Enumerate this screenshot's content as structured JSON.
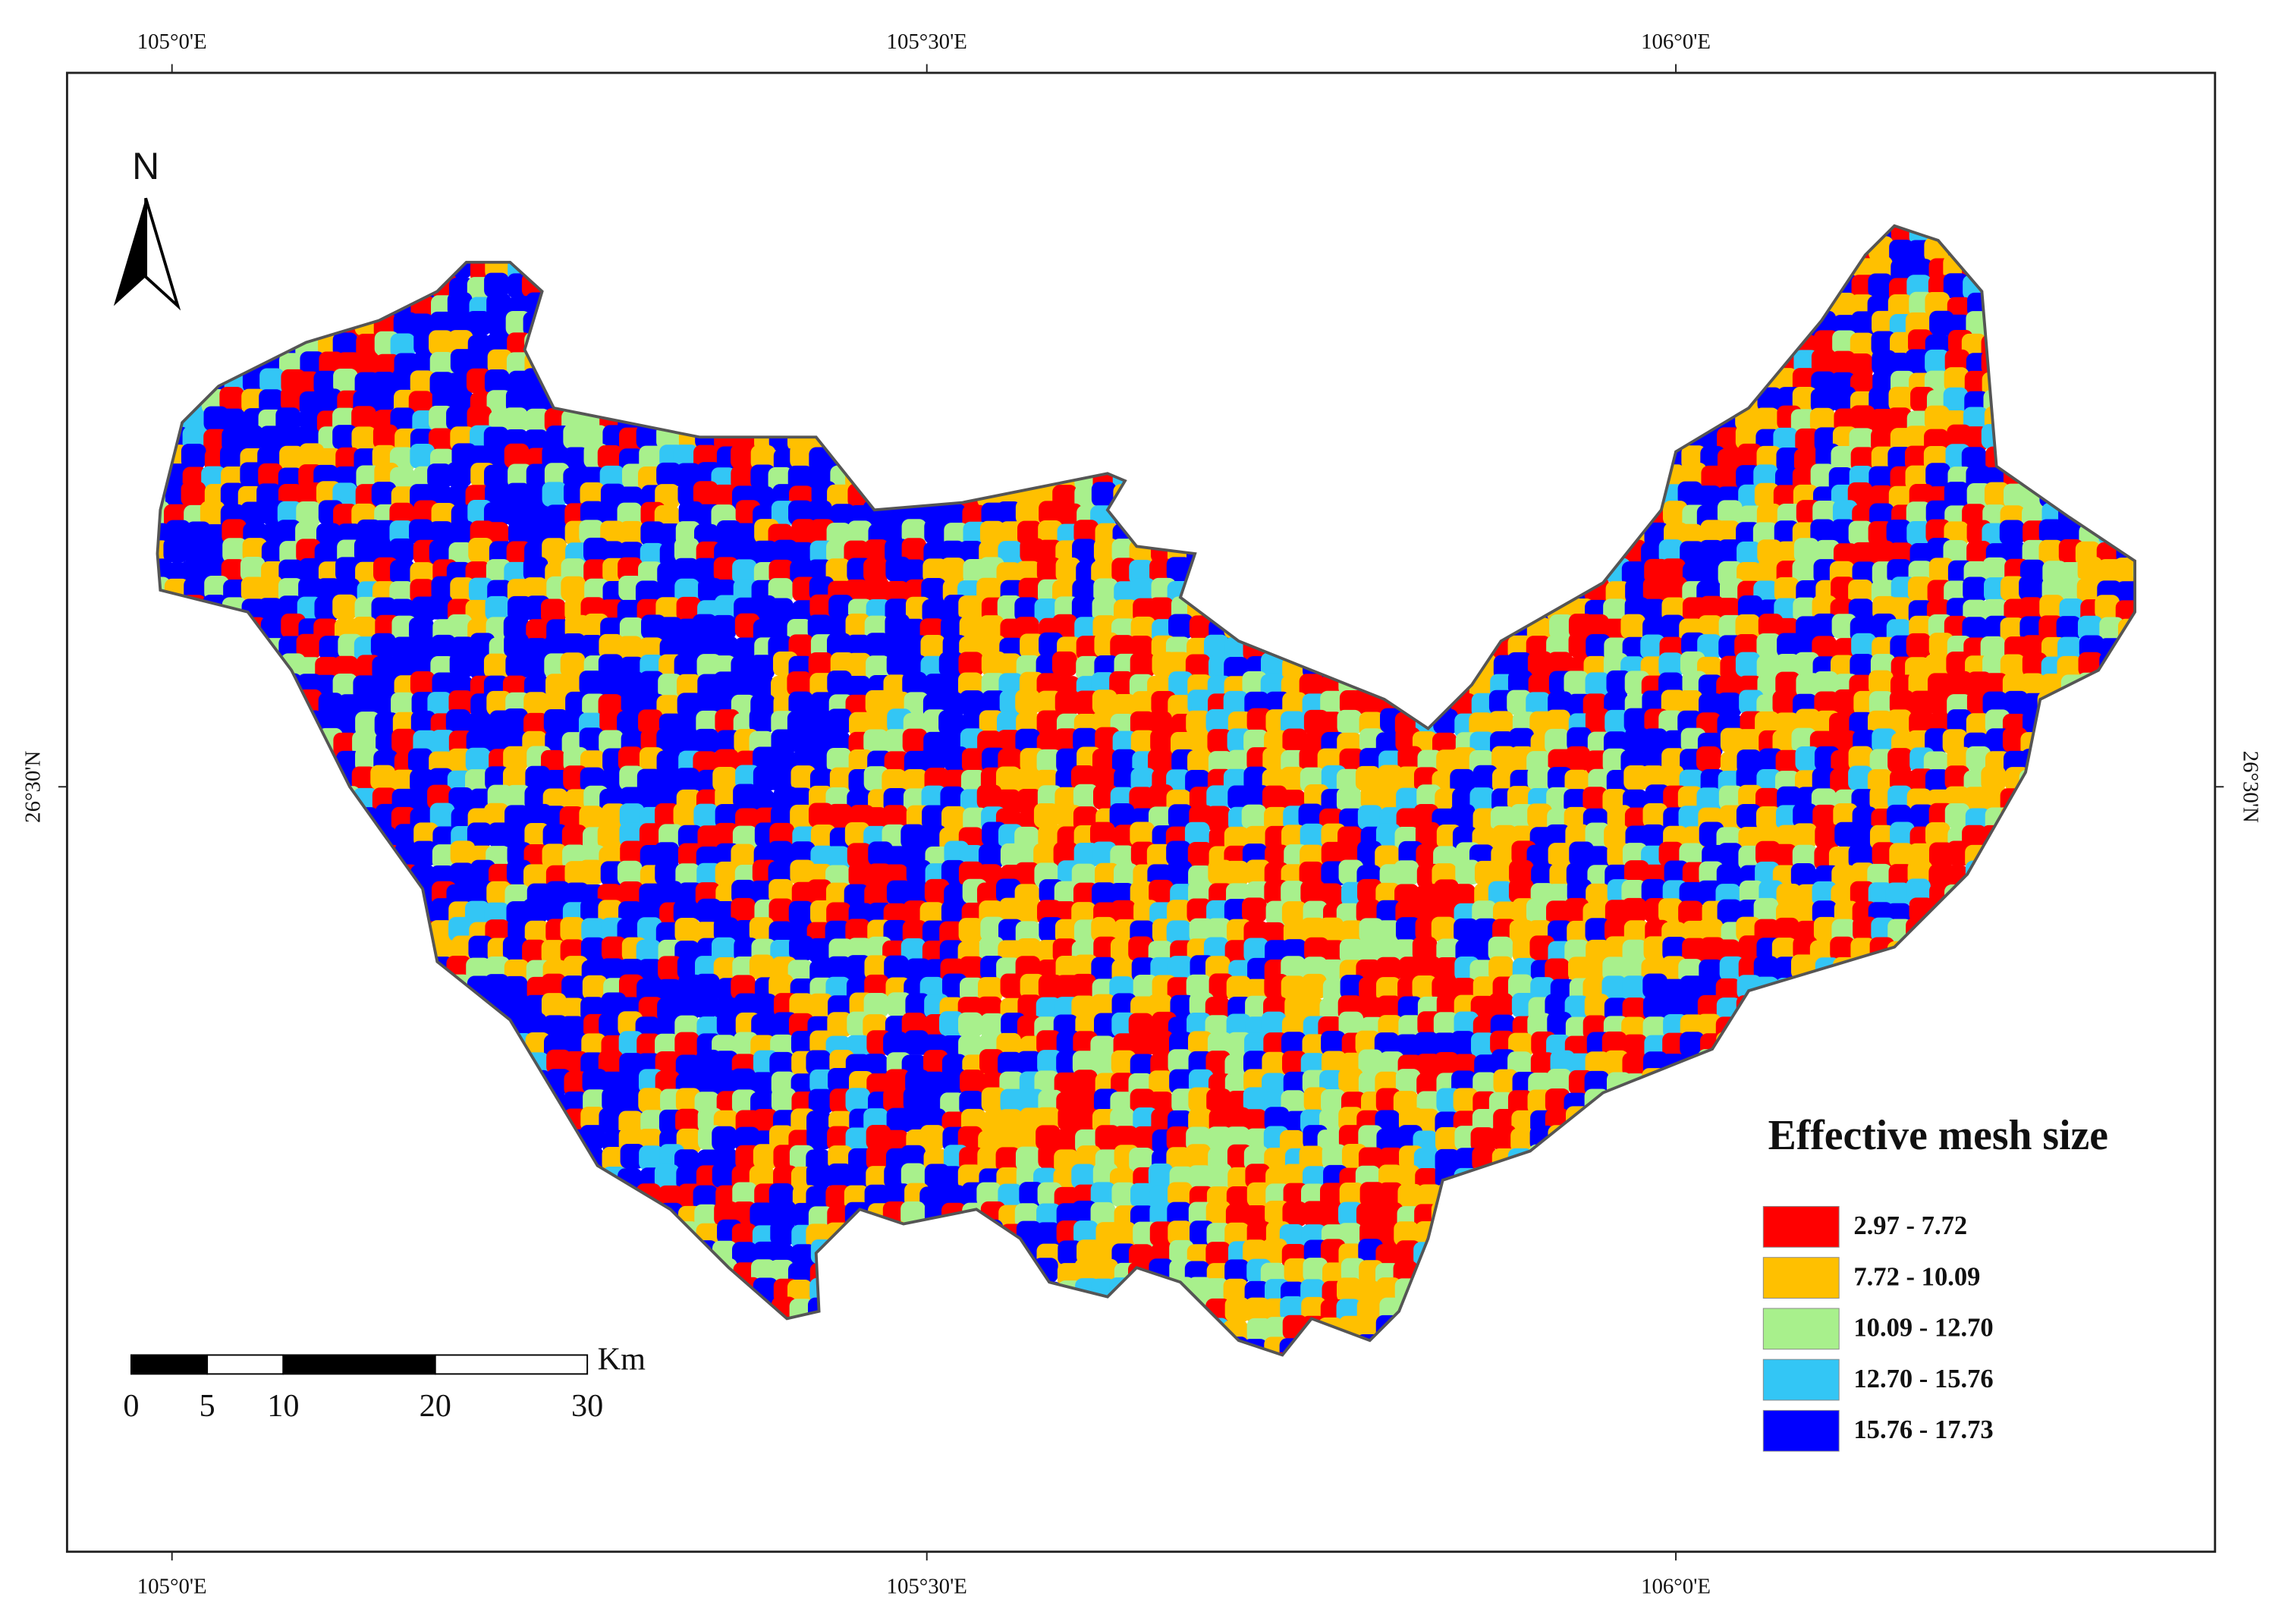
{
  "map": {
    "north_label": "N",
    "graticule": {
      "top": [
        "105°0'E",
        "105°30'E",
        "106°0'E"
      ],
      "bottom": [
        "105°0'E",
        "105°30'E",
        "106°0'E"
      ],
      "left": [
        "26°30'N"
      ],
      "right": [
        "26°30'N"
      ]
    },
    "legend": {
      "title": "Effective mesh size",
      "items": [
        {
          "label": "2.97 - 7.72",
          "color": "#ff0000"
        },
        {
          "label": "7.72 - 10.09",
          "color": "#ffc000"
        },
        {
          "label": "10.09 - 12.70",
          "color": "#a8f08c"
        },
        {
          "label": "12.70 - 15.76",
          "color": "#33c6f5"
        },
        {
          "label": "15.76 - 17.73",
          "color": "#0000ff"
        }
      ]
    },
    "scale_bar": {
      "ticks": [
        0,
        5,
        10,
        20,
        30
      ],
      "unit": "Km"
    }
  }
}
